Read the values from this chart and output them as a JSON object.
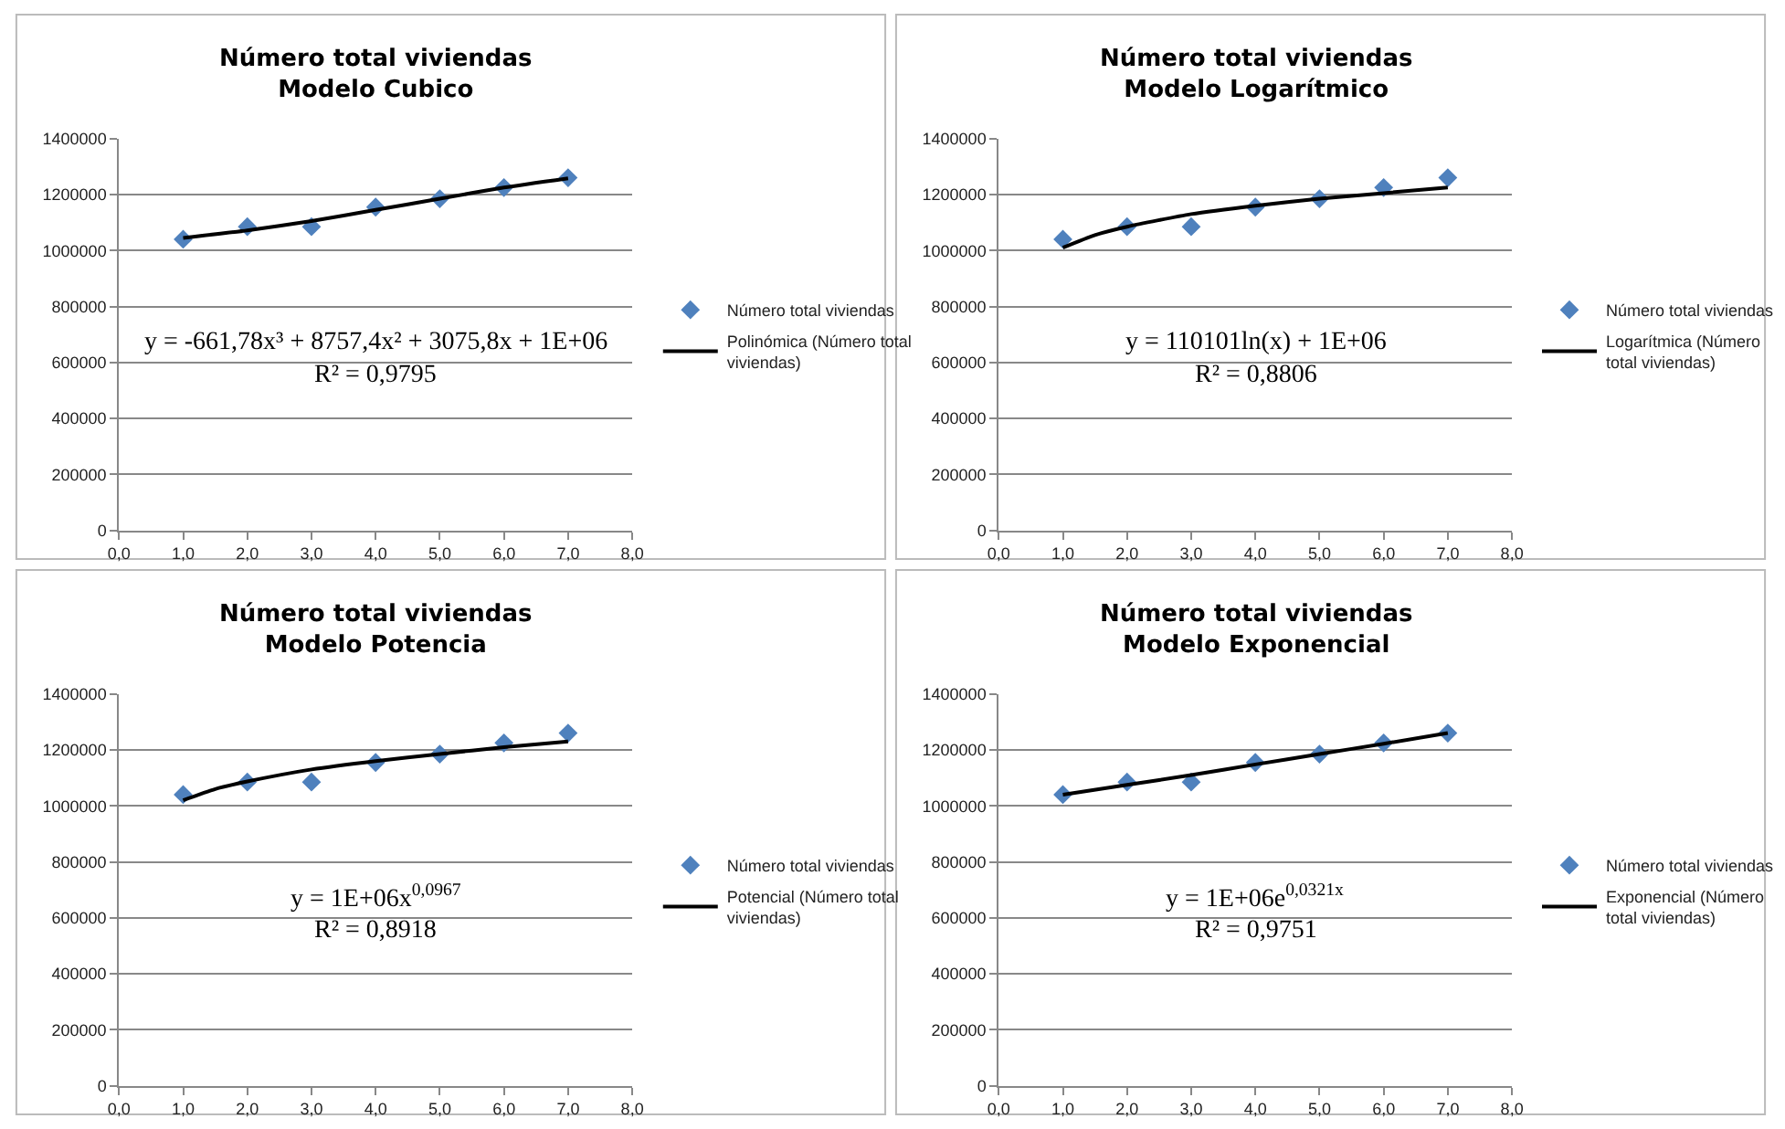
{
  "chart_data": [
    {
      "type": "scatter",
      "title": "Número total viviendas\nModelo Cubico",
      "x": [
        1,
        2,
        3,
        4,
        5,
        6,
        7
      ],
      "series": [
        {
          "name": "Número total viviendas",
          "color": "#4f81bd",
          "marker": "diamond",
          "values": [
            1040000,
            1085000,
            1085000,
            1155000,
            1185000,
            1225000,
            1260000
          ]
        },
        {
          "name": "Polinómica (Número total viviendas)",
          "type": "line",
          "color": "#000000",
          "marker": "none",
          "x": [
            1,
            2,
            3,
            4,
            5,
            6,
            7
          ],
          "values": [
            1045000,
            1072000,
            1105000,
            1145000,
            1185000,
            1225000,
            1258000
          ]
        }
      ],
      "annotations": [
        "y = -661,78x³ + 8757,4x² + 3075,8x + 1E+06",
        "R² = 0,9795"
      ],
      "xlim": [
        0,
        8
      ],
      "xticks": [
        {
          "value": 0,
          "label": "0,0"
        },
        {
          "value": 1,
          "label": "1,0"
        },
        {
          "value": 2,
          "label": "2,0"
        },
        {
          "value": 3,
          "label": "3,0"
        },
        {
          "value": 4,
          "label": "4,0"
        },
        {
          "value": 5,
          "label": "5,0"
        },
        {
          "value": 6,
          "label": "6,0"
        },
        {
          "value": 7,
          "label": "7,0"
        },
        {
          "value": 8,
          "label": "8,0"
        }
      ],
      "ylim": [
        0,
        1400000
      ],
      "yticks": [
        0,
        200000,
        400000,
        600000,
        800000,
        1000000,
        1200000,
        1400000
      ],
      "grid": "y",
      "legend": "right"
    },
    {
      "type": "scatter",
      "title": "Número total viviendas\nModelo Logarítmico",
      "x": [
        1,
        2,
        3,
        4,
        5,
        6,
        7
      ],
      "series": [
        {
          "name": "Número total viviendas",
          "color": "#4f81bd",
          "marker": "diamond",
          "values": [
            1040000,
            1085000,
            1085000,
            1155000,
            1185000,
            1225000,
            1260000
          ]
        },
        {
          "name": "Logarítmica (Número total viviendas)",
          "type": "line",
          "color": "#000000",
          "marker": "none",
          "x": [
            1,
            1.5,
            2,
            3,
            4,
            5,
            6,
            7
          ],
          "values": [
            1010000,
            1055000,
            1085000,
            1130000,
            1160000,
            1185000,
            1205000,
            1225000
          ]
        }
      ],
      "annotations": [
        "y = 110101ln(x) + 1E+06",
        "R² = 0,8806"
      ],
      "xlim": [
        0,
        8
      ],
      "xticks": [
        {
          "value": 0,
          "label": "0,0"
        },
        {
          "value": 1,
          "label": "1,0"
        },
        {
          "value": 2,
          "label": "2,0"
        },
        {
          "value": 3,
          "label": "3,0"
        },
        {
          "value": 4,
          "label": "4,0"
        },
        {
          "value": 5,
          "label": "5,0"
        },
        {
          "value": 6,
          "label": "6,0"
        },
        {
          "value": 7,
          "label": "7,0"
        },
        {
          "value": 8,
          "label": "8,0"
        }
      ],
      "ylim": [
        0,
        1400000
      ],
      "yticks": [
        0,
        200000,
        400000,
        600000,
        800000,
        1000000,
        1200000,
        1400000
      ],
      "grid": "y",
      "legend": "right"
    },
    {
      "type": "scatter",
      "title": "Número total viviendas\nModelo Potencia",
      "x": [
        1,
        2,
        3,
        4,
        5,
        6,
        7
      ],
      "series": [
        {
          "name": "Número total viviendas",
          "color": "#4f81bd",
          "marker": "diamond",
          "values": [
            1040000,
            1085000,
            1085000,
            1155000,
            1185000,
            1225000,
            1260000
          ]
        },
        {
          "name": "Potencial (Número total viviendas)",
          "type": "line",
          "color": "#000000",
          "marker": "none",
          "x": [
            1,
            1.5,
            2,
            3,
            4,
            5,
            6,
            7
          ],
          "values": [
            1020000,
            1060000,
            1087000,
            1130000,
            1160000,
            1185000,
            1210000,
            1230000
          ]
        }
      ],
      "annotations": [
        "y = 1E+06x$^{0,0967}$",
        "R² = 0,8918"
      ],
      "xlim": [
        0,
        8
      ],
      "xticks": [
        {
          "value": 0,
          "label": "0,0"
        },
        {
          "value": 1,
          "label": "1,0"
        },
        {
          "value": 2,
          "label": "2,0"
        },
        {
          "value": 3,
          "label": "3,0"
        },
        {
          "value": 4,
          "label": "4,0"
        },
        {
          "value": 5,
          "label": "5,0"
        },
        {
          "value": 6,
          "label": "6,0"
        },
        {
          "value": 7,
          "label": "7,0"
        },
        {
          "value": 8,
          "label": "8,0"
        }
      ],
      "ylim": [
        0,
        1400000
      ],
      "yticks": [
        0,
        200000,
        400000,
        600000,
        800000,
        1000000,
        1200000,
        1400000
      ],
      "grid": "y",
      "legend": "right"
    },
    {
      "type": "scatter",
      "title": "Número total viviendas\nModelo Exponencial",
      "x": [
        1,
        2,
        3,
        4,
        5,
        6,
        7
      ],
      "series": [
        {
          "name": "Número total viviendas",
          "color": "#4f81bd",
          "marker": "diamond",
          "values": [
            1040000,
            1085000,
            1085000,
            1155000,
            1185000,
            1225000,
            1260000
          ]
        },
        {
          "name": "Exponencial (Número total viviendas)",
          "type": "line",
          "color": "#000000",
          "marker": "none",
          "x": [
            1,
            2,
            3,
            4,
            5,
            6,
            7
          ],
          "values": [
            1040000,
            1075000,
            1110000,
            1148000,
            1185000,
            1222000,
            1260000
          ]
        }
      ],
      "annotations": [
        "y = 1E+06e$^{0,0321x}$",
        "R² = 0,9751"
      ],
      "xlim": [
        0,
        8
      ],
      "xticks": [
        {
          "value": 0,
          "label": "0,0"
        },
        {
          "value": 1,
          "label": "1,0"
        },
        {
          "value": 2,
          "label": "2,0"
        },
        {
          "value": 3,
          "label": "3,0"
        },
        {
          "value": 4,
          "label": "4,0"
        },
        {
          "value": 5,
          "label": "5,0"
        },
        {
          "value": 6,
          "label": "6,0"
        },
        {
          "value": 7,
          "label": "7,0"
        },
        {
          "value": 8,
          "label": "8,0"
        }
      ],
      "ylim": [
        0,
        1400000
      ],
      "yticks": [
        0,
        200000,
        400000,
        600000,
        800000,
        1000000,
        1200000,
        1400000
      ],
      "grid": "y",
      "legend": "right"
    }
  ]
}
